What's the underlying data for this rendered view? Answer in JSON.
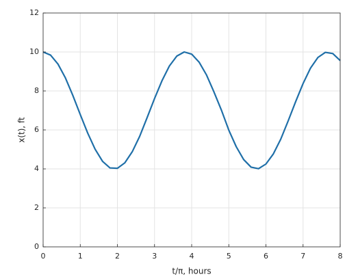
{
  "chart_data": {
    "type": "line",
    "xlabel": "t/π, hours",
    "ylabel": "x(t), ft",
    "x": [
      0,
      0.2,
      0.4,
      0.6,
      0.8,
      1.0,
      1.2,
      1.4,
      1.6,
      1.8,
      2.0,
      2.2,
      2.4,
      2.6,
      2.8,
      3.0,
      3.2,
      3.4,
      3.6,
      3.8,
      4.0,
      4.2,
      4.4,
      4.6,
      4.8,
      5.0,
      5.2,
      5.4,
      5.6,
      5.8,
      6.0,
      6.2,
      6.4,
      6.6,
      6.8,
      7.0,
      7.2,
      7.4,
      7.6,
      7.8,
      8.0
    ],
    "series": [
      {
        "color": "#1f6fa8",
        "values": [
          10,
          9.84,
          9.38,
          8.67,
          7.77,
          6.79,
          5.84,
          5.01,
          4.39,
          4.05,
          4.03,
          4.31,
          4.88,
          5.67,
          6.63,
          7.61,
          8.52,
          9.28,
          9.79,
          10.0,
          9.89,
          9.48,
          8.82,
          7.95,
          7.02,
          5.99,
          5.14,
          4.48,
          4.09,
          4.01,
          4.25,
          4.77,
          5.53,
          6.47,
          7.45,
          8.38,
          9.17,
          9.72,
          9.98,
          9.92,
          9.56
        ]
      }
    ],
    "xlim": [
      0,
      8
    ],
    "xticks": [
      0,
      1,
      2,
      3,
      4,
      5,
      6,
      7,
      8
    ],
    "ylim": [
      0,
      12
    ],
    "yticks": [
      0,
      2,
      4,
      6,
      8,
      10,
      12
    ],
    "grid": true
  }
}
